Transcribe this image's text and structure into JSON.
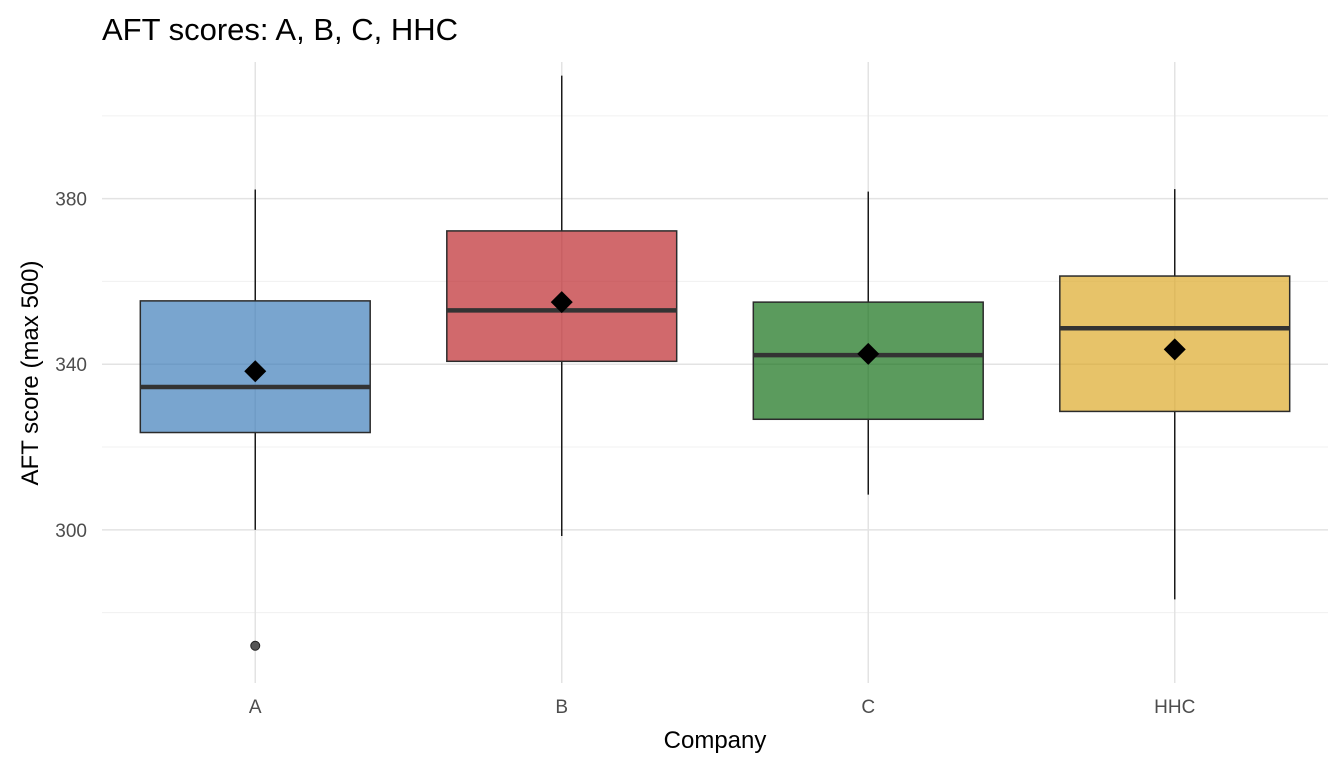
{
  "chart_data": {
    "type": "box",
    "title": "AFT scores: A, B, C, HHC",
    "xlabel": "Company",
    "ylabel": "AFT score (max 500)",
    "ylim": [
      263,
      413
    ],
    "y_ticks": [
      300,
      340,
      380
    ],
    "y_minor_ticks": [
      280,
      320,
      360,
      400
    ],
    "grid": true,
    "legend": "none",
    "categories": [
      "A",
      "B",
      "C",
      "HHC"
    ],
    "boxes": [
      {
        "category": "A",
        "whisker_low": 300,
        "q1": 323.5,
        "median": 334.5,
        "q3": 355.3,
        "whisker_high": 382.2,
        "mean": 338.3,
        "outliers": [
          272
        ],
        "color": "#3a7ab8"
      },
      {
        "category": "B",
        "whisker_low": 298.5,
        "q1": 340.7,
        "median": 353,
        "q3": 372.2,
        "whisker_high": 409.7,
        "mean": 355,
        "outliers": [],
        "color": "#bb2226"
      },
      {
        "category": "C",
        "whisker_low": 308.5,
        "q1": 326.7,
        "median": 342.2,
        "q3": 355,
        "whisker_high": 381.7,
        "mean": 342.5,
        "outliers": [],
        "color": "#0e6b10"
      },
      {
        "category": "HHC",
        "whisker_low": 283.2,
        "q1": 328.6,
        "median": 348.7,
        "q3": 361.3,
        "whisker_high": 382.3,
        "mean": 343.6,
        "outliers": [],
        "color": "#dca622"
      }
    ]
  }
}
